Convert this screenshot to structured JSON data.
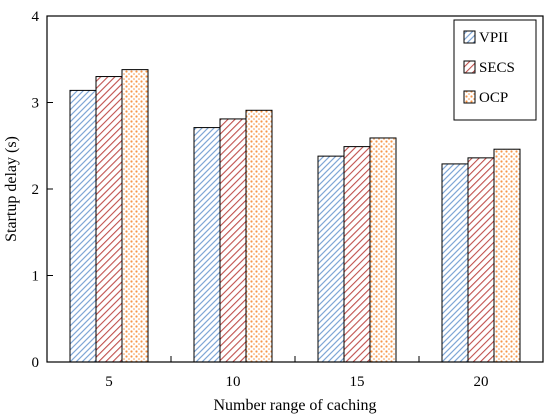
{
  "chart_data": {
    "type": "bar",
    "title": "",
    "xlabel": "Number range of caching",
    "ylabel": "Startup delay (s)",
    "categories": [
      "5",
      "10",
      "15",
      "20"
    ],
    "ylim": [
      0,
      4
    ],
    "yticks": [
      "0",
      "1",
      "2",
      "3",
      "4"
    ],
    "series": [
      {
        "name": "VPII",
        "values": [
          3.14,
          2.71,
          2.38,
          2.29
        ],
        "color": "#7fa7d6",
        "pattern": "diagonal-hatch-blue"
      },
      {
        "name": "SECS",
        "values": [
          3.3,
          2.81,
          2.49,
          2.36
        ],
        "color": "#c0504d",
        "pattern": "diagonal-stripe-red"
      },
      {
        "name": "OCP",
        "values": [
          3.38,
          2.91,
          2.59,
          2.46
        ],
        "color": "#f79646",
        "pattern": "dotted-orange"
      }
    ],
    "legend": {
      "position": "top-right"
    },
    "grid": false
  }
}
